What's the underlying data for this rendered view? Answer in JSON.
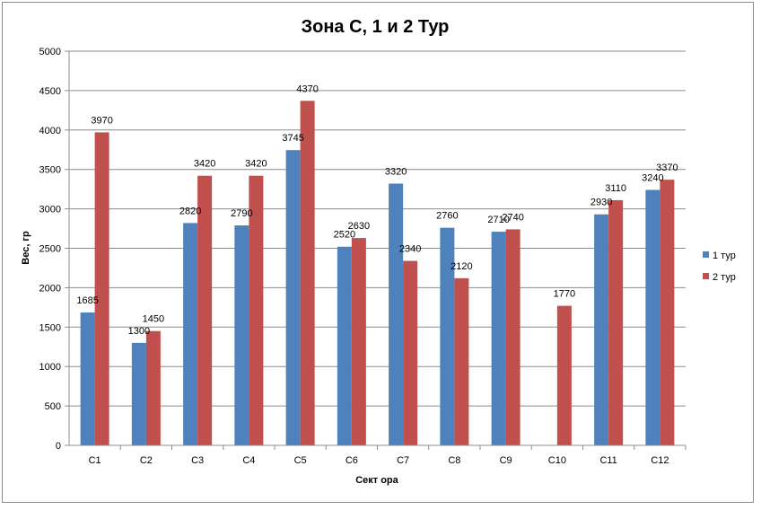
{
  "chart_data": {
    "type": "bar",
    "title": "Зона С, 1 и 2 Тур",
    "xlabel": "Сект ора",
    "ylabel": "Вес, гр",
    "categories": [
      "C1",
      "C2",
      "C3",
      "C4",
      "C5",
      "C6",
      "C7",
      "C8",
      "C9",
      "C10",
      "C11",
      "C12"
    ],
    "series": [
      {
        "name": "1 тур",
        "color": "#4f81bd",
        "values": [
          1685,
          1300,
          2820,
          2790,
          3745,
          2520,
          3320,
          2760,
          2710,
          null,
          2930,
          3240
        ]
      },
      {
        "name": "2 тур",
        "color": "#c0504d",
        "values": [
          3970,
          1450,
          3420,
          3420,
          4370,
          2630,
          2340,
          2120,
          2740,
          1770,
          3110,
          3370
        ]
      }
    ],
    "ylim": [
      0,
      5000
    ],
    "ytick_step": 500,
    "grid": true,
    "legend": "right",
    "gridline_color": "#8c8c8c"
  }
}
